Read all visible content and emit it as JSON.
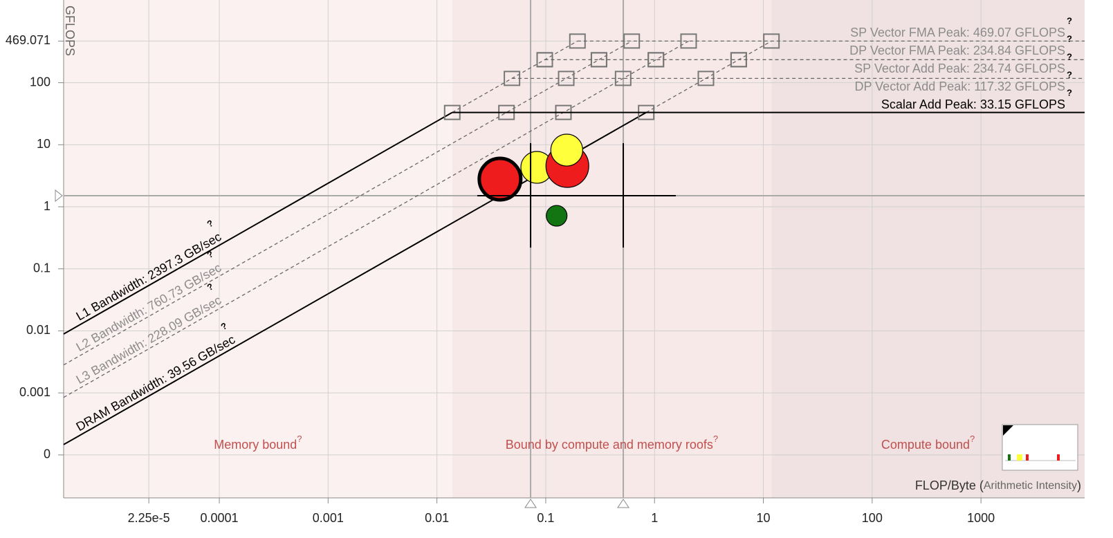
{
  "chart_data": {
    "type": "roofline",
    "y_label": "GFLOPS",
    "x_label": [
      "FLOP/Byte (",
      "Arithmetic Intensity",
      ")"
    ],
    "help": "?",
    "log_x": true,
    "log_y": true,
    "grid": true,
    "xlim": [
      3.71e-06,
      8970
    ],
    "ylim": [
      2.03e-05,
      2154
    ],
    "xticks": [
      {
        "value": 2.25e-05,
        "label": "2.25e-5"
      },
      0.0001,
      0.001,
      0.01,
      0.1,
      1,
      10,
      100,
      1000
    ],
    "yticks": [
      {
        "value": 0.0001,
        "label": "0"
      },
      0.001,
      0.01,
      0.1,
      1,
      10,
      100,
      469.071
    ],
    "bandwidth_roofs": [
      {
        "label": "L1 Bandwidth: 2397.3 GB/sec",
        "value": 2397.3,
        "color": "#000000",
        "style": "solid"
      },
      {
        "label": "L2 Bandwidth: 760.73 GB/sec",
        "value": 760.73,
        "color": "#8c8c8c",
        "style": "dashed"
      },
      {
        "label": "L3 Bandwidth: 228.09 GB/sec",
        "value": 228.09,
        "color": "#8c8c8c",
        "style": "dashed"
      },
      {
        "label": "DRAM Bandwidth: 39.56 GB/sec",
        "value": 39.56,
        "color": "#000000",
        "style": "solid"
      }
    ],
    "compute_roofs": [
      {
        "label": "SP Vector FMA Peak: 469.07 GFLOPS",
        "value": 469.07,
        "color": "#8c8c8c",
        "style": "dashed"
      },
      {
        "label": "DP Vector FMA Peak: 234.84 GFLOPS",
        "value": 234.84,
        "color": "#8c8c8c",
        "style": "dashed"
      },
      {
        "label": "SP Vector Add Peak: 234.74 GFLOPS",
        "value": 234.74,
        "color": "#8c8c8c",
        "style": "dashed"
      },
      {
        "label": "DP Vector Add Peak: 117.32 GFLOPS",
        "value": 117.32,
        "color": "#8c8c8c",
        "style": "dashed"
      },
      {
        "label": "Scalar Add Peak: 33.15 GFLOPS",
        "value": 33.15,
        "color": "#000000",
        "style": "solid"
      }
    ],
    "regions": [
      {
        "label": "Memory bound",
        "color": "#fcf1f1"
      },
      {
        "label": "Bound by compute and memory roofs",
        "color": "#f8e9e9"
      },
      {
        "label": "Compute bound",
        "color": "#f0e2e2"
      }
    ],
    "region_label_color": "#c0504d",
    "points": {
      "x": [
        0.038,
        0.0828,
        0.158,
        0.156,
        0.126
      ],
      "y": [
        2.79,
        4.32,
        4.55,
        8.2,
        0.716
      ],
      "sizes": [
        9,
        5.3,
        9.6,
        5.3,
        2.25
      ],
      "colors": [
        "#ee1c1c",
        "#ffff3c",
        "#ee1c1c",
        "#ffff3c",
        "#127512"
      ],
      "selected": 0
    },
    "markers": {
      "x": [
        0.0726,
        0.516
      ],
      "y": 1.51
    }
  }
}
